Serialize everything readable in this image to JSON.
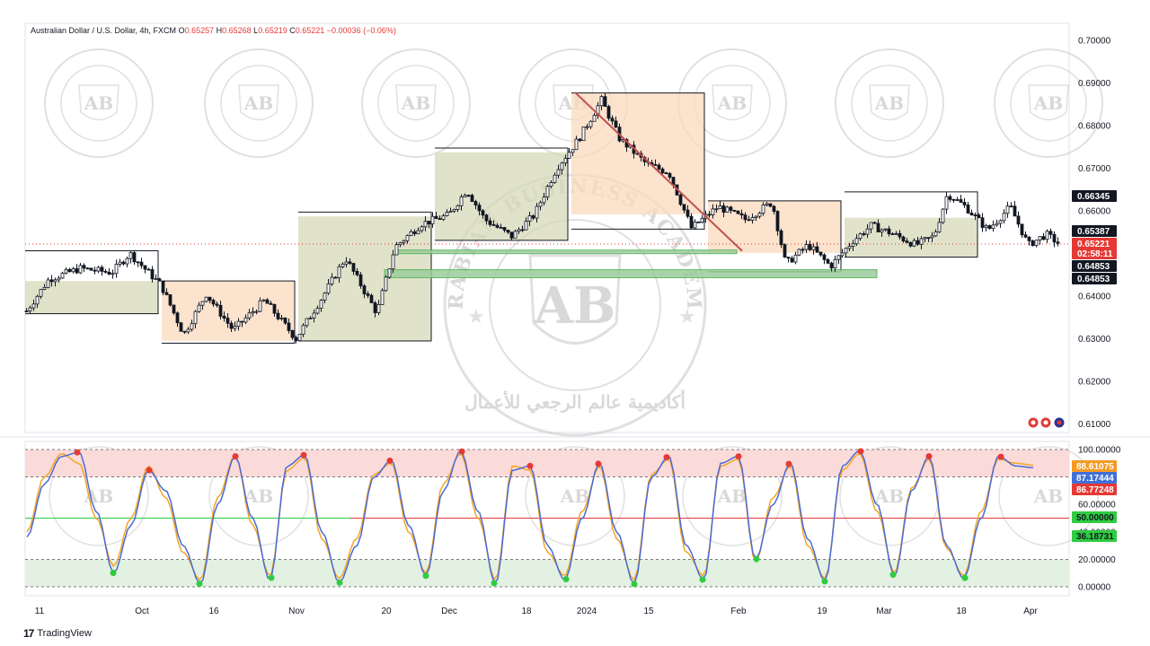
{
  "header": {
    "symbol_title": "Australian Dollar / U.S. Dollar, 4h, FXCM",
    "ohlc": [
      {
        "label": "O",
        "value": "0.65257"
      },
      {
        "label": "H",
        "value": "0.65268"
      },
      {
        "label": "L",
        "value": "0.65219"
      },
      {
        "label": "C",
        "value": "0.65221"
      }
    ],
    "change": "−0.00036 (−0.06%)"
  },
  "watermark": {
    "brand": "ARABIAN BUSINESS ACADEMY",
    "monogram": "AB",
    "arabic": "أكاديمية عالم الرجعي للأعمال"
  },
  "branding": {
    "logo": "17",
    "name": "TradingView"
  },
  "colors": {
    "up": "#26a69a",
    "down": "#ef5350",
    "candle": "#131722",
    "k_line": "#4a6bd6",
    "d_line": "#f5a623",
    "overbought_zone": "#fbdada",
    "oversold_zone": "#e3f1e3",
    "supply_box": "#fbd9bd",
    "demand_box": "#d6d9b8",
    "trend_line": "#c0504d",
    "support_zone": "#9ccc9c"
  },
  "price_tags": [
    {
      "value": "0.66345",
      "color": "#131722"
    },
    {
      "value": "0.65387",
      "color": "#131722"
    },
    {
      "value": "0.65221",
      "sub": "02:58:11",
      "color": "#e53935"
    },
    {
      "value": "0.64853",
      "color": "#131722"
    },
    {
      "value": "0.64853",
      "color": "#131722"
    }
  ],
  "osc_tags": [
    {
      "value": "88.61075",
      "color": "#f59a23"
    },
    {
      "value": "87.17444",
      "color": "#3f6fd8"
    },
    {
      "value": "86.77248",
      "color": "#e53935"
    },
    {
      "value": "50.00000",
      "color": "#2ecc40"
    },
    {
      "value": "36.18731",
      "color": "#2ecc40"
    }
  ],
  "chart_data": [
    {
      "type": "candlestick",
      "title": "Australian Dollar / U.S. Dollar, 4h, FXCM",
      "y_axis_ticks": [
        "0.70000",
        "0.69000",
        "0.68000",
        "0.67000",
        "0.66000",
        "0.65000",
        "0.64000",
        "0.63000",
        "0.62000",
        "0.61000"
      ],
      "ylim": [
        0.608,
        0.704
      ],
      "x_axis_ticks": [
        "11",
        "Oct",
        "16",
        "Nov",
        "20",
        "Dec",
        "18",
        "2024",
        "15",
        "Feb",
        "19",
        "Mar",
        "18",
        "Apr"
      ],
      "last_price": 0.65221,
      "levels": {
        "resistance": 0.66345,
        "mid": 0.65387,
        "support": 0.64853
      },
      "trend_line": {
        "from_price": 0.6878,
        "to_price": 0.6506
      },
      "support_zones": [
        {
          "low": 0.6502,
          "high": 0.6508
        },
        {
          "low": 0.6443,
          "high": 0.6462
        }
      ],
      "path": [
        [
          0,
          0.6365
        ],
        [
          25,
          0.644
        ],
        [
          60,
          0.6465
        ],
        [
          95,
          0.6455
        ],
        [
          115,
          0.65
        ],
        [
          150,
          0.6425
        ],
        [
          175,
          0.631
        ],
        [
          200,
          0.6405
        ],
        [
          230,
          0.632
        ],
        [
          265,
          0.639
        ],
        [
          300,
          0.63
        ],
        [
          330,
          0.64
        ],
        [
          355,
          0.649
        ],
        [
          390,
          0.636
        ],
        [
          410,
          0.6515
        ],
        [
          440,
          0.657
        ],
        [
          470,
          0.659
        ],
        [
          490,
          0.665
        ],
        [
          510,
          0.658
        ],
        [
          540,
          0.654
        ],
        [
          565,
          0.659
        ],
        [
          590,
          0.67
        ],
        [
          615,
          0.677
        ],
        [
          640,
          0.686
        ],
        [
          660,
          0.677
        ],
        [
          690,
          0.671
        ],
        [
          715,
          0.669
        ],
        [
          740,
          0.656
        ],
        [
          770,
          0.661
        ],
        [
          800,
          0.658
        ],
        [
          830,
          0.662
        ],
        [
          845,
          0.6475
        ],
        [
          870,
          0.652
        ],
        [
          895,
          0.647
        ],
        [
          920,
          0.653
        ],
        [
          940,
          0.6565
        ],
        [
          960,
          0.655
        ],
        [
          990,
          0.652
        ],
        [
          1010,
          0.654
        ],
        [
          1025,
          0.664
        ],
        [
          1045,
          0.661
        ],
        [
          1070,
          0.6555
        ],
        [
          1095,
          0.661
        ],
        [
          1115,
          0.652
        ],
        [
          1135,
          0.6545
        ],
        [
          1150,
          0.6522
        ]
      ]
    },
    {
      "type": "line",
      "title": "Oscillator",
      "y_axis_ticks": [
        "100.00000",
        "80.00000",
        "60.00000",
        "40.00000",
        "20.00000",
        "0.00000"
      ],
      "ylim": [
        0,
        100
      ],
      "overbought_band": [
        80,
        100
      ],
      "oversold_band": [
        0,
        20
      ],
      "midline": 50,
      "series": [
        {
          "values": [
            36.18731,
            75,
            95,
            98,
            55,
            10,
            45,
            85,
            70,
            30,
            2,
            60,
            95,
            50,
            5,
            88,
            96,
            40,
            3,
            30,
            80,
            92,
            45,
            8,
            70,
            99,
            55,
            2,
            85,
            88,
            30,
            5,
            50,
            90,
            40,
            2,
            80,
            95,
            30,
            5,
            90,
            95,
            20,
            60,
            90,
            35,
            4,
            88,
            99,
            60,
            8,
            70,
            95,
            30,
            6,
            50,
            95,
            88,
            86.77248
          ]
        },
        {
          "values": [
            40,
            80,
            97,
            90,
            50,
            15,
            50,
            88,
            65,
            25,
            5,
            65,
            96,
            45,
            8,
            85,
            94,
            35,
            6,
            35,
            82,
            90,
            40,
            10,
            75,
            97,
            50,
            5,
            88,
            85,
            25,
            8,
            55,
            88,
            35,
            5,
            82,
            93,
            25,
            8,
            88,
            93,
            18,
            65,
            88,
            30,
            6,
            85,
            97,
            55,
            10,
            72,
            93,
            28,
            8,
            55,
            93,
            90,
            88.61075
          ]
        }
      ]
    }
  ]
}
